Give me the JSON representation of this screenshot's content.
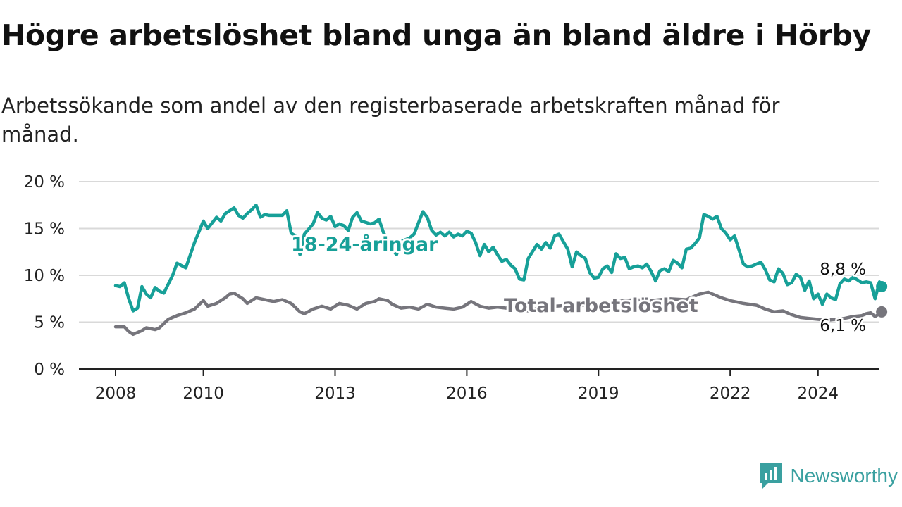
{
  "title": "Högre arbetslöshet bland unga än bland äldre i Hörby",
  "subtitle": "Arbetssökande som andel av den registerbaserade arbetskraften månad för månad.",
  "brand": {
    "name": "Newsworthy",
    "icon": "newsworthy-logo-icon"
  },
  "colors": {
    "youth": "#17a098",
    "total": "#76757c",
    "grid": "#d9d9d9",
    "axis": "#222222"
  },
  "chart_data": {
    "type": "line",
    "title": "Högre arbetslöshet bland unga än bland äldre i Hörby",
    "xlabel": "",
    "ylabel": "",
    "x_range": [
      2007.6,
      2025.4
    ],
    "ylim": [
      0,
      20
    ],
    "grid": true,
    "x_ticks": [
      {
        "value": 2008,
        "label": "2008"
      },
      {
        "value": 2010,
        "label": "2010"
      },
      {
        "value": 2013,
        "label": "2013"
      },
      {
        "value": 2016,
        "label": "2016"
      },
      {
        "value": 2019,
        "label": "2019"
      },
      {
        "value": 2022,
        "label": "2022"
      },
      {
        "value": 2024,
        "label": "2024"
      }
    ],
    "y_ticks": [
      {
        "value": 0,
        "label": "0 %"
      },
      {
        "value": 5,
        "label": "5 %"
      },
      {
        "value": 10,
        "label": "10 %"
      },
      {
        "value": 15,
        "label": "15 %"
      },
      {
        "value": 20,
        "label": "20 %"
      }
    ],
    "series": [
      {
        "name": "18-24-åringar",
        "color": "#17a098",
        "end_label": "8,8 %",
        "points": [
          [
            2008.0,
            8.9
          ],
          [
            2008.1,
            8.8
          ],
          [
            2008.2,
            9.2
          ],
          [
            2008.3,
            7.5
          ],
          [
            2008.4,
            6.2
          ],
          [
            2008.5,
            6.5
          ],
          [
            2008.6,
            8.8
          ],
          [
            2008.7,
            8.0
          ],
          [
            2008.8,
            7.6
          ],
          [
            2008.9,
            8.7
          ],
          [
            2009.0,
            8.3
          ],
          [
            2009.1,
            8.1
          ],
          [
            2009.3,
            10.0
          ],
          [
            2009.4,
            11.3
          ],
          [
            2009.6,
            10.8
          ],
          [
            2009.8,
            13.5
          ],
          [
            2010.0,
            15.8
          ],
          [
            2010.1,
            15.0
          ],
          [
            2010.3,
            16.2
          ],
          [
            2010.4,
            15.8
          ],
          [
            2010.5,
            16.6
          ],
          [
            2010.7,
            17.2
          ],
          [
            2010.8,
            16.4
          ],
          [
            2010.9,
            16.1
          ],
          [
            2011.0,
            16.6
          ],
          [
            2011.1,
            17.0
          ],
          [
            2011.2,
            17.5
          ],
          [
            2011.3,
            16.2
          ],
          [
            2011.4,
            16.5
          ],
          [
            2011.5,
            16.4
          ],
          [
            2011.6,
            16.4
          ],
          [
            2011.8,
            16.4
          ],
          [
            2011.9,
            16.9
          ],
          [
            2012.0,
            14.5
          ],
          [
            2012.1,
            14.2
          ],
          [
            2012.2,
            12.2
          ],
          [
            2012.3,
            14.4
          ],
          [
            2012.5,
            15.5
          ],
          [
            2012.6,
            16.7
          ],
          [
            2012.7,
            16.1
          ],
          [
            2012.8,
            15.9
          ],
          [
            2012.9,
            16.3
          ],
          [
            2013.0,
            15.2
          ],
          [
            2013.1,
            15.5
          ],
          [
            2013.2,
            15.3
          ],
          [
            2013.3,
            14.8
          ],
          [
            2013.4,
            16.2
          ],
          [
            2013.5,
            16.7
          ],
          [
            2013.6,
            15.8
          ],
          [
            2013.8,
            15.5
          ],
          [
            2013.9,
            15.6
          ],
          [
            2014.0,
            16.0
          ],
          [
            2014.1,
            14.6
          ],
          [
            2014.3,
            12.8
          ],
          [
            2014.4,
            12.2
          ],
          [
            2014.5,
            13.6
          ],
          [
            2014.7,
            14.0
          ],
          [
            2014.8,
            14.4
          ],
          [
            2015.0,
            16.8
          ],
          [
            2015.1,
            16.2
          ],
          [
            2015.2,
            14.8
          ],
          [
            2015.3,
            14.3
          ],
          [
            2015.4,
            14.6
          ],
          [
            2015.5,
            14.2
          ],
          [
            2015.6,
            14.6
          ],
          [
            2015.7,
            14.1
          ],
          [
            2015.8,
            14.4
          ],
          [
            2015.9,
            14.2
          ],
          [
            2016.0,
            14.7
          ],
          [
            2016.1,
            14.5
          ],
          [
            2016.2,
            13.5
          ],
          [
            2016.3,
            12.1
          ],
          [
            2016.4,
            13.3
          ],
          [
            2016.5,
            12.5
          ],
          [
            2016.6,
            13.0
          ],
          [
            2016.7,
            12.2
          ],
          [
            2016.8,
            11.5
          ],
          [
            2016.9,
            11.7
          ],
          [
            2017.0,
            11.1
          ],
          [
            2017.1,
            10.7
          ],
          [
            2017.2,
            9.6
          ],
          [
            2017.3,
            9.5
          ],
          [
            2017.4,
            11.8
          ],
          [
            2017.6,
            13.3
          ],
          [
            2017.7,
            12.8
          ],
          [
            2017.8,
            13.5
          ],
          [
            2017.9,
            12.9
          ],
          [
            2018.0,
            14.2
          ],
          [
            2018.1,
            14.4
          ],
          [
            2018.3,
            12.8
          ],
          [
            2018.4,
            10.9
          ],
          [
            2018.5,
            12.5
          ],
          [
            2018.6,
            12.1
          ],
          [
            2018.7,
            11.8
          ],
          [
            2018.8,
            10.3
          ],
          [
            2018.9,
            9.7
          ],
          [
            2019.0,
            9.8
          ],
          [
            2019.1,
            10.7
          ],
          [
            2019.2,
            11.0
          ],
          [
            2019.3,
            10.3
          ],
          [
            2019.4,
            12.3
          ],
          [
            2019.5,
            11.8
          ],
          [
            2019.6,
            11.9
          ],
          [
            2019.7,
            10.7
          ],
          [
            2019.8,
            10.9
          ],
          [
            2019.9,
            11.0
          ],
          [
            2020.0,
            10.8
          ],
          [
            2020.1,
            11.2
          ],
          [
            2020.2,
            10.4
          ],
          [
            2020.3,
            9.4
          ],
          [
            2020.4,
            10.5
          ],
          [
            2020.5,
            10.7
          ],
          [
            2020.6,
            10.4
          ],
          [
            2020.7,
            11.6
          ],
          [
            2020.8,
            11.3
          ],
          [
            2020.9,
            10.8
          ],
          [
            2021.0,
            12.8
          ],
          [
            2021.1,
            12.9
          ],
          [
            2021.2,
            13.4
          ],
          [
            2021.3,
            14.0
          ],
          [
            2021.4,
            16.5
          ],
          [
            2021.5,
            16.3
          ],
          [
            2021.6,
            16.0
          ],
          [
            2021.7,
            16.3
          ],
          [
            2021.8,
            15.0
          ],
          [
            2021.9,
            14.5
          ],
          [
            2022.0,
            13.8
          ],
          [
            2022.1,
            14.2
          ],
          [
            2022.2,
            12.7
          ],
          [
            2022.3,
            11.2
          ],
          [
            2022.4,
            10.9
          ],
          [
            2022.5,
            11.0
          ],
          [
            2022.6,
            11.2
          ],
          [
            2022.7,
            11.4
          ],
          [
            2022.8,
            10.6
          ],
          [
            2022.9,
            9.5
          ],
          [
            2023.0,
            9.3
          ],
          [
            2023.1,
            10.7
          ],
          [
            2023.2,
            10.2
          ],
          [
            2023.3,
            9.0
          ],
          [
            2023.4,
            9.2
          ],
          [
            2023.5,
            10.1
          ],
          [
            2023.6,
            9.8
          ],
          [
            2023.7,
            8.4
          ],
          [
            2023.8,
            9.4
          ],
          [
            2023.9,
            7.5
          ],
          [
            2024.0,
            8.0
          ],
          [
            2024.1,
            6.9
          ],
          [
            2024.2,
            8.0
          ],
          [
            2024.3,
            7.6
          ],
          [
            2024.4,
            7.4
          ],
          [
            2024.5,
            9.1
          ],
          [
            2024.6,
            9.6
          ],
          [
            2024.7,
            9.4
          ],
          [
            2024.8,
            9.8
          ],
          [
            2024.9,
            9.5
          ],
          [
            2025.0,
            9.2
          ],
          [
            2025.1,
            9.3
          ],
          [
            2025.2,
            9.2
          ],
          [
            2025.3,
            7.5
          ],
          [
            2025.4,
            9.3
          ],
          [
            2025.45,
            8.8
          ]
        ]
      },
      {
        "name": "Total arbetslöshet",
        "color": "#76757c",
        "end_label": "6,1 %",
        "points": [
          [
            2008.0,
            4.5
          ],
          [
            2008.1,
            4.5
          ],
          [
            2008.2,
            4.5
          ],
          [
            2008.3,
            4.0
          ],
          [
            2008.4,
            3.7
          ],
          [
            2008.6,
            4.1
          ],
          [
            2008.7,
            4.4
          ],
          [
            2008.9,
            4.2
          ],
          [
            2009.0,
            4.4
          ],
          [
            2009.2,
            5.3
          ],
          [
            2009.4,
            5.7
          ],
          [
            2009.6,
            6.0
          ],
          [
            2009.8,
            6.4
          ],
          [
            2010.0,
            7.3
          ],
          [
            2010.1,
            6.7
          ],
          [
            2010.3,
            7.0
          ],
          [
            2010.5,
            7.6
          ],
          [
            2010.6,
            8.0
          ],
          [
            2010.7,
            8.1
          ],
          [
            2010.9,
            7.5
          ],
          [
            2011.0,
            7.0
          ],
          [
            2011.2,
            7.6
          ],
          [
            2011.4,
            7.4
          ],
          [
            2011.6,
            7.2
          ],
          [
            2011.8,
            7.4
          ],
          [
            2012.0,
            7.0
          ],
          [
            2012.2,
            6.1
          ],
          [
            2012.3,
            5.9
          ],
          [
            2012.5,
            6.4
          ],
          [
            2012.7,
            6.7
          ],
          [
            2012.9,
            6.4
          ],
          [
            2013.1,
            7.0
          ],
          [
            2013.3,
            6.8
          ],
          [
            2013.5,
            6.4
          ],
          [
            2013.7,
            7.0
          ],
          [
            2013.9,
            7.2
          ],
          [
            2014.0,
            7.5
          ],
          [
            2014.2,
            7.3
          ],
          [
            2014.3,
            6.9
          ],
          [
            2014.5,
            6.5
          ],
          [
            2014.7,
            6.6
          ],
          [
            2014.9,
            6.4
          ],
          [
            2015.1,
            6.9
          ],
          [
            2015.3,
            6.6
          ],
          [
            2015.5,
            6.5
          ],
          [
            2015.7,
            6.4
          ],
          [
            2015.9,
            6.6
          ],
          [
            2016.1,
            7.2
          ],
          [
            2016.3,
            6.7
          ],
          [
            2016.5,
            6.5
          ],
          [
            2016.7,
            6.6
          ],
          [
            2016.9,
            6.5
          ],
          [
            2017.0,
            6.8
          ],
          [
            2017.2,
            6.4
          ],
          [
            2017.4,
            6.2
          ],
          [
            2017.6,
            6.5
          ],
          [
            2017.8,
            6.6
          ],
          [
            2018.0,
            6.7
          ],
          [
            2018.3,
            6.8
          ],
          [
            2018.6,
            6.8
          ],
          [
            2019.0,
            6.9
          ],
          [
            2019.4,
            7.2
          ],
          [
            2019.8,
            7.4
          ],
          [
            2020.2,
            7.3
          ],
          [
            2020.6,
            7.5
          ],
          [
            2021.0,
            7.4
          ],
          [
            2021.3,
            8.0
          ],
          [
            2021.5,
            8.2
          ],
          [
            2021.8,
            7.6
          ],
          [
            2022.0,
            7.3
          ],
          [
            2022.3,
            7.0
          ],
          [
            2022.6,
            6.8
          ],
          [
            2022.8,
            6.4
          ],
          [
            2023.0,
            6.1
          ],
          [
            2023.2,
            6.2
          ],
          [
            2023.4,
            5.8
          ],
          [
            2023.6,
            5.5
          ],
          [
            2023.8,
            5.4
          ],
          [
            2024.0,
            5.3
          ],
          [
            2024.2,
            5.2
          ],
          [
            2024.4,
            5.3
          ],
          [
            2024.6,
            5.4
          ],
          [
            2024.8,
            5.6
          ],
          [
            2025.0,
            5.7
          ],
          [
            2025.1,
            5.9
          ],
          [
            2025.2,
            6.0
          ],
          [
            2025.3,
            5.6
          ],
          [
            2025.4,
            5.9
          ],
          [
            2025.45,
            6.1
          ]
        ]
      }
    ]
  }
}
